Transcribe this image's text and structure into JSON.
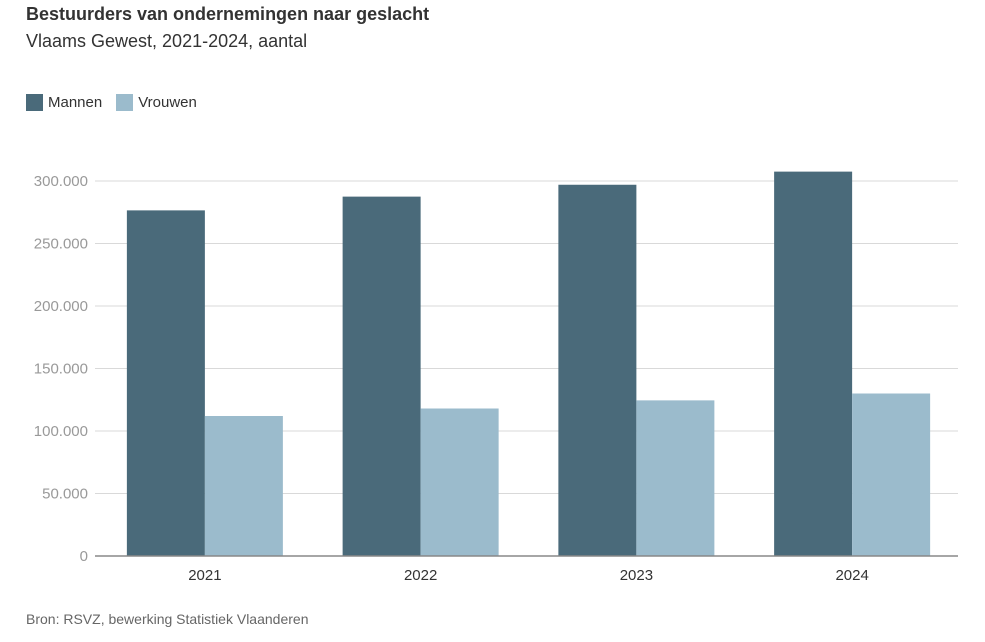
{
  "header": {
    "title": "Bestuurders van ondernemingen naar geslacht",
    "subtitle": "Vlaams Gewest, 2021-2024, aantal"
  },
  "legend": {
    "items": [
      {
        "label": "Mannen",
        "color": "#4a6a7a"
      },
      {
        "label": "Vrouwen",
        "color": "#9bbbcc"
      }
    ]
  },
  "footer": {
    "source": "Bron: RSVZ, bewerking Statistiek Vlaanderen"
  },
  "chart_data": {
    "type": "bar",
    "title": "Bestuurders van ondernemingen naar geslacht",
    "subtitle": "Vlaams Gewest, 2021-2024, aantal",
    "categories": [
      "2021",
      "2022",
      "2023",
      "2024"
    ],
    "series": [
      {
        "name": "Mannen",
        "values": [
          276500,
          287500,
          297000,
          307500
        ],
        "color": "#4a6a7a"
      },
      {
        "name": "Vrouwen",
        "values": [
          112000,
          118000,
          124500,
          130000
        ],
        "color": "#9bbbcc"
      }
    ],
    "ylim": [
      0,
      300000
    ],
    "yticks": [
      0,
      50000,
      100000,
      150000,
      200000,
      250000,
      300000
    ],
    "ytick_labels": [
      "0",
      "50.000",
      "100.000",
      "150.000",
      "200.000",
      "250.000",
      "300.000"
    ],
    "grid": true,
    "legend_position": "top-left"
  }
}
